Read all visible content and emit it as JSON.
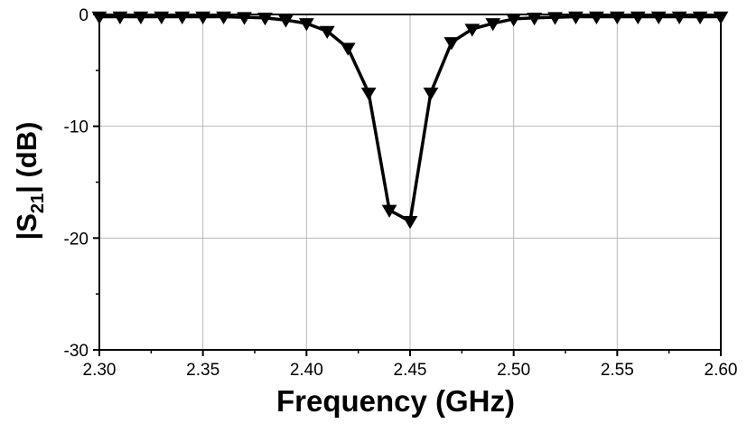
{
  "chart_data": {
    "type": "line",
    "xlabel": "Frequency (GHz)",
    "ylabel_parts": {
      "main": "|S",
      "subscript": "21",
      "tail": "| (dB)"
    },
    "xlim": [
      2.3,
      2.6
    ],
    "ylim": [
      -30,
      0
    ],
    "x_ticks": [
      "2.30",
      "2.35",
      "2.40",
      "2.45",
      "2.50",
      "2.55",
      "2.60"
    ],
    "y_ticks": [
      "0",
      "-10",
      "-20",
      "-30"
    ],
    "grid": true,
    "marker": "triangle-down",
    "color": "#000000",
    "series": [
      {
        "x": [
          2.3,
          2.31,
          2.32,
          2.33,
          2.34,
          2.35,
          2.36,
          2.37,
          2.38,
          2.39,
          2.4,
          2.41,
          2.42,
          2.43,
          2.44,
          2.45,
          2.46,
          2.47,
          2.48,
          2.49,
          2.5,
          2.51,
          2.52,
          2.53,
          2.54,
          2.55,
          2.56,
          2.57,
          2.58,
          2.59,
          2.6
        ],
        "y": [
          -0.2,
          -0.2,
          -0.2,
          -0.2,
          -0.2,
          -0.2,
          -0.2,
          -0.25,
          -0.3,
          -0.5,
          -0.8,
          -1.5,
          -3.0,
          -7.0,
          -17.5,
          -18.5,
          -7.0,
          -2.5,
          -1.3,
          -0.8,
          -0.4,
          -0.3,
          -0.25,
          -0.2,
          -0.2,
          -0.2,
          -0.2,
          -0.2,
          -0.2,
          -0.2,
          -0.2
        ]
      }
    ]
  }
}
